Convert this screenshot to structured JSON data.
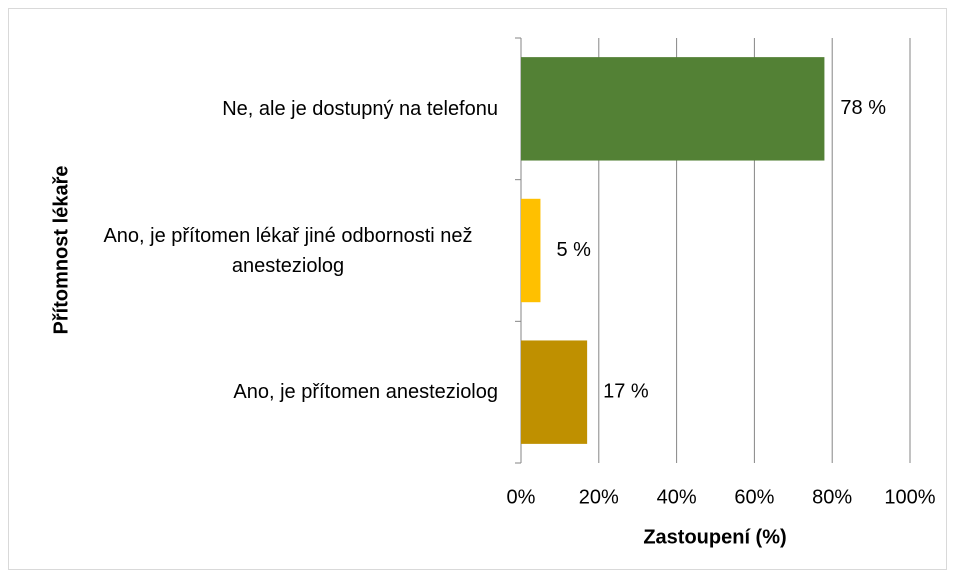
{
  "chart_data": {
    "type": "barh",
    "categories": [
      "Ne, ale je dostupný na telefonu",
      "Ano, je přítomen lékař jiné odbornosti než anesteziolog",
      "Ano, je přítomen anesteziolog"
    ],
    "values": [
      78,
      5,
      17
    ],
    "value_labels": [
      "78 %",
      "5 %",
      "17 %"
    ],
    "colors": [
      "#538135",
      "#ffc000",
      "#bf9000"
    ],
    "xlabel": "Zastoupení (%)",
    "ylabel": "Přítomnost lékaře",
    "xlim": [
      0,
      100
    ],
    "xticks": [
      {
        "value": 0,
        "label": "0%"
      },
      {
        "value": 20,
        "label": "20%"
      },
      {
        "value": 40,
        "label": "40%"
      },
      {
        "value": 60,
        "label": "60%"
      },
      {
        "value": 80,
        "label": "80%"
      },
      {
        "value": 100,
        "label": "100%"
      }
    ],
    "grid": true
  }
}
